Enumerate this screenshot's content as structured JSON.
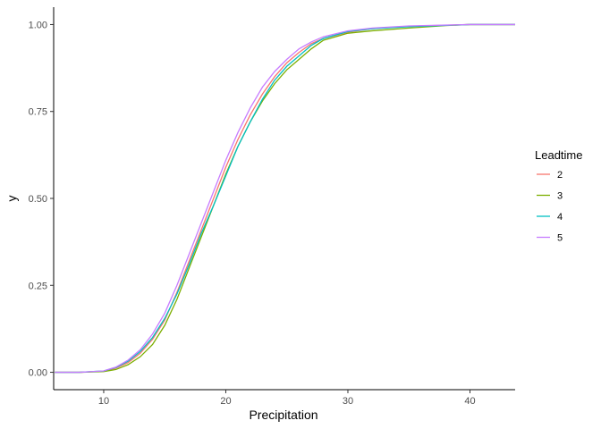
{
  "chart_data": {
    "type": "line",
    "xlabel": "Precipitation",
    "ylabel": "y",
    "xlim": [
      5.9,
      43.7
    ],
    "ylim": [
      -0.05,
      1.05
    ],
    "x_ticks": [
      10,
      20,
      30,
      40
    ],
    "y_ticks": [
      0.0,
      0.25,
      0.5,
      0.75,
      1.0
    ],
    "x_tick_labels": [
      "10",
      "20",
      "30",
      "40"
    ],
    "y_tick_labels": [
      "0.00",
      "0.25",
      "0.50",
      "0.75",
      "1.00"
    ],
    "grid": false,
    "legend": {
      "title": "Leadtime",
      "position": "right"
    },
    "series": [
      {
        "name": "2",
        "color": "#F8766D",
        "points": [
          [
            6,
            0.0
          ],
          [
            8,
            0.0
          ],
          [
            10,
            0.003
          ],
          [
            11,
            0.012
          ],
          [
            12,
            0.028
          ],
          [
            13,
            0.055
          ],
          [
            14,
            0.095
          ],
          [
            15,
            0.15
          ],
          [
            16,
            0.23
          ],
          [
            17,
            0.32
          ],
          [
            18,
            0.41
          ],
          [
            19,
            0.5
          ],
          [
            20,
            0.59
          ],
          [
            21,
            0.67
          ],
          [
            22,
            0.74
          ],
          [
            23,
            0.8
          ],
          [
            24,
            0.85
          ],
          [
            25,
            0.89
          ],
          [
            26,
            0.92
          ],
          [
            27,
            0.945
          ],
          [
            28,
            0.96
          ],
          [
            30,
            0.978
          ],
          [
            32,
            0.988
          ],
          [
            35,
            0.995
          ],
          [
            40,
            1.0
          ],
          [
            43.7,
            1.0
          ]
        ]
      },
      {
        "name": "3",
        "color": "#7CAE00",
        "points": [
          [
            6,
            0.0
          ],
          [
            8,
            0.0
          ],
          [
            10,
            0.002
          ],
          [
            11,
            0.008
          ],
          [
            12,
            0.022
          ],
          [
            13,
            0.045
          ],
          [
            14,
            0.08
          ],
          [
            15,
            0.135
          ],
          [
            16,
            0.21
          ],
          [
            17,
            0.3
          ],
          [
            18,
            0.39
          ],
          [
            19,
            0.48
          ],
          [
            20,
            0.57
          ],
          [
            21,
            0.65
          ],
          [
            22,
            0.72
          ],
          [
            23,
            0.78
          ],
          [
            24,
            0.83
          ],
          [
            25,
            0.87
          ],
          [
            26,
            0.9
          ],
          [
            27,
            0.93
          ],
          [
            28,
            0.955
          ],
          [
            30,
            0.975
          ],
          [
            32,
            0.982
          ],
          [
            35,
            0.99
          ],
          [
            38,
            0.997
          ],
          [
            40,
            1.0
          ],
          [
            43.7,
            1.0
          ]
        ]
      },
      {
        "name": "4",
        "color": "#00BFC4",
        "points": [
          [
            6,
            0.0
          ],
          [
            8,
            0.0
          ],
          [
            10,
            0.004
          ],
          [
            11,
            0.014
          ],
          [
            12,
            0.032
          ],
          [
            13,
            0.06
          ],
          [
            14,
            0.1
          ],
          [
            15,
            0.155
          ],
          [
            16,
            0.225
          ],
          [
            17,
            0.31
          ],
          [
            18,
            0.4
          ],
          [
            19,
            0.48
          ],
          [
            20,
            0.565
          ],
          [
            21,
            0.65
          ],
          [
            22,
            0.72
          ],
          [
            23,
            0.785
          ],
          [
            24,
            0.84
          ],
          [
            25,
            0.88
          ],
          [
            26,
            0.91
          ],
          [
            27,
            0.94
          ],
          [
            28,
            0.96
          ],
          [
            30,
            0.98
          ],
          [
            32,
            0.988
          ],
          [
            35,
            0.994
          ],
          [
            40,
            1.0
          ],
          [
            43.7,
            1.0
          ]
        ]
      },
      {
        "name": "5",
        "color": "#C77CFF",
        "points": [
          [
            6,
            0.0
          ],
          [
            8,
            0.0
          ],
          [
            10,
            0.004
          ],
          [
            11,
            0.015
          ],
          [
            12,
            0.035
          ],
          [
            13,
            0.065
          ],
          [
            14,
            0.11
          ],
          [
            15,
            0.17
          ],
          [
            16,
            0.25
          ],
          [
            17,
            0.34
          ],
          [
            18,
            0.43
          ],
          [
            19,
            0.52
          ],
          [
            20,
            0.61
          ],
          [
            21,
            0.69
          ],
          [
            22,
            0.76
          ],
          [
            23,
            0.82
          ],
          [
            24,
            0.865
          ],
          [
            25,
            0.9
          ],
          [
            26,
            0.93
          ],
          [
            27,
            0.95
          ],
          [
            28,
            0.965
          ],
          [
            30,
            0.982
          ],
          [
            32,
            0.99
          ],
          [
            35,
            0.996
          ],
          [
            40,
            1.0
          ],
          [
            43.7,
            1.0
          ]
        ]
      }
    ]
  },
  "colors": {
    "axis": "#000000",
    "tick_label": "#4d4d4d",
    "background": "#ffffff"
  }
}
